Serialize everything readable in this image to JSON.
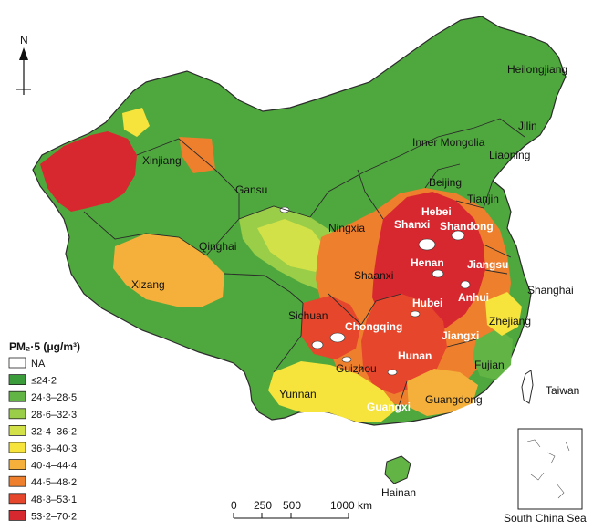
{
  "north_label": "N",
  "legend": {
    "title": "PM₂·5 (μg/m³)",
    "items": [
      {
        "label": "NA",
        "color": "#ffffff"
      },
      {
        "label": "≤24·2",
        "color": "#3a9c3a"
      },
      {
        "label": "24·3–28·5",
        "color": "#62b445"
      },
      {
        "label": "28·6–32·3",
        "color": "#9acd48"
      },
      {
        "label": "32·4–36·2",
        "color": "#d2e147"
      },
      {
        "label": "36·3–40·3",
        "color": "#f6e33b"
      },
      {
        "label": "40·4–44·4",
        "color": "#f4b03a"
      },
      {
        "label": "44·5–48·2",
        "color": "#ee7f2d"
      },
      {
        "label": "48·3–53·1",
        "color": "#e6462c"
      },
      {
        "label": "53·2–70·2",
        "color": "#d7282f"
      }
    ]
  },
  "scale_bar": {
    "ticks": [
      "0",
      "250",
      "500",
      "1000 km"
    ]
  },
  "inset_label": "South China Sea",
  "regions": {
    "heilongjiang": "Heilongjiang",
    "jilin": "Jilin",
    "liaoning": "Liaoning",
    "inner_mongolia": "Inner Mongolia",
    "beijing": "Beijing",
    "tianjin": "Tianjin",
    "hebei": "Hebei",
    "shanxi": "Shanxi",
    "shandong": "Shandong",
    "xinjiang": "Xinjiang",
    "gansu": "Gansu",
    "ningxia": "Ningxia",
    "qinghai": "Qinghai",
    "xizang": "Xizang",
    "shaanxi": "Shaanxi",
    "henan": "Henan",
    "jiangsu": "Jiangsu",
    "shanghai": "Shanghai",
    "anhui": "Anhui",
    "hubei": "Hubei",
    "sichuan": "Sichuan",
    "chongqing": "Chongqing",
    "zhejiang": "Zhejiang",
    "jiangxi": "Jiangxi",
    "hunan": "Hunan",
    "guizhou": "Guizhou",
    "fujian": "Fujian",
    "yunnan": "Yunnan",
    "taiwan": "Taiwan",
    "guangxi": "Guangxi",
    "guangdong": "Guangdong",
    "hainan": "Hainan"
  }
}
